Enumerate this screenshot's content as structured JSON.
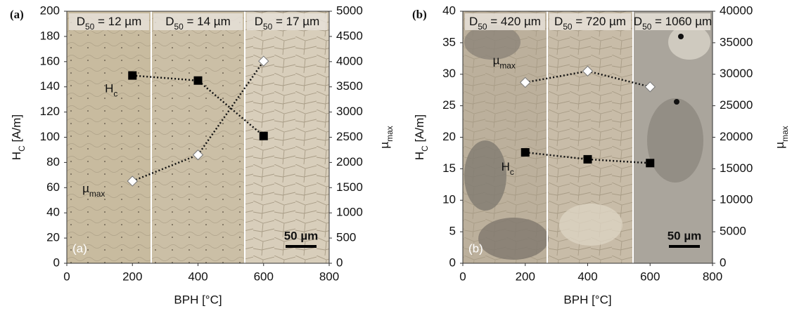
{
  "chart_data": [
    {
      "type": "line",
      "panel": "(a)",
      "inset_label": "(a)",
      "scalebar": "50 µm",
      "xlabel": "BPH [°C]",
      "ylabel": "H",
      "ylabel_sub": "C",
      "ylabel_rest": " [A/m]",
      "y2label": "µ",
      "y2label_sub": "max",
      "sections": [
        {
          "main": "D",
          "sub": "50",
          "rest": " = 12 µm"
        },
        {
          "main": "D",
          "sub": "50",
          "rest": " = 14 µm"
        },
        {
          "main": "D",
          "sub": "50",
          "rest": " = 17 µm"
        }
      ],
      "x": [
        200,
        400,
        600
      ],
      "series": [
        {
          "name": "H",
          "name_sub": "c",
          "color": "#000000",
          "values": [
            149,
            145,
            101
          ]
        },
        {
          "name": "µ",
          "name_sub": "max",
          "color": "#ffffff",
          "axis": "y2",
          "values": [
            1630,
            2150,
            4010
          ]
        }
      ],
      "xlim": [
        0,
        800
      ],
      "xticks": [
        0,
        200,
        400,
        600,
        800
      ],
      "ylim": [
        0,
        200
      ],
      "yticks": [
        0,
        20,
        40,
        60,
        80,
        100,
        120,
        140,
        160,
        180,
        200
      ],
      "y2lim": [
        0,
        5000
      ],
      "y2ticks": [
        0,
        500,
        1000,
        1500,
        2000,
        2500,
        3000,
        3500,
        4000,
        4500,
        5000
      ]
    },
    {
      "type": "line",
      "panel": "(b)",
      "inset_label": "(b)",
      "scalebar": "50 µm",
      "xlabel": "BPH [°C]",
      "ylabel": "H",
      "ylabel_sub": "C",
      "ylabel_rest": " [A/m]",
      "y2label": "µ",
      "y2label_sub": "max",
      "sections": [
        {
          "main": "D",
          "sub": "50",
          "rest": " = 420 µm"
        },
        {
          "main": "D",
          "sub": "50",
          "rest": " = 720 µm"
        },
        {
          "main": "D",
          "sub": "50",
          "rest": " = 1060 µm"
        }
      ],
      "x": [
        200,
        400,
        600
      ],
      "series": [
        {
          "name": "H",
          "name_sub": "c",
          "color": "#000000",
          "values": [
            17.6,
            16.5,
            15.9
          ]
        },
        {
          "name": "µ",
          "name_sub": "max",
          "color": "#ffffff",
          "axis": "y2",
          "values": [
            28700,
            30500,
            28000
          ]
        }
      ],
      "xlim": [
        0,
        800
      ],
      "xticks": [
        0,
        200,
        400,
        600,
        800
      ],
      "ylim": [
        0,
        40
      ],
      "yticks": [
        0,
        5,
        10,
        15,
        20,
        25,
        30,
        35,
        40
      ],
      "y2lim": [
        0,
        40000
      ],
      "y2ticks": [
        0,
        5000,
        10000,
        15000,
        20000,
        25000,
        30000,
        35000,
        40000
      ]
    }
  ]
}
